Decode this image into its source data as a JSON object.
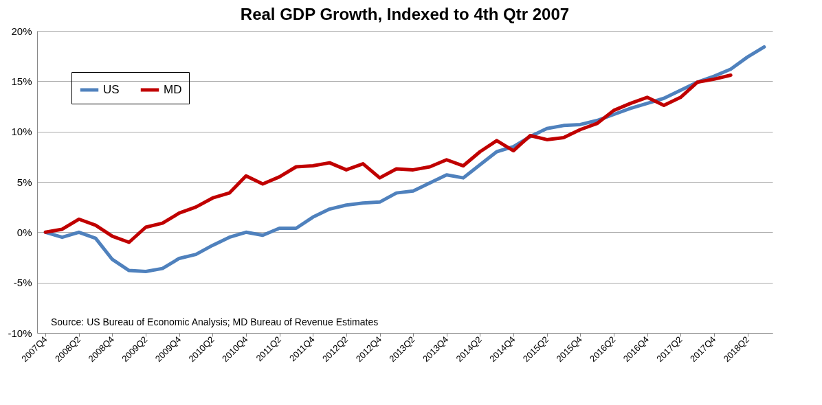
{
  "chart_data": {
    "type": "line",
    "title": "Real GDP Growth, Indexed to 4th Qtr 2007",
    "categories": [
      "2007Q4",
      null,
      "2008Q2",
      null,
      "2008Q4",
      null,
      "2009Q2",
      null,
      "2009Q4",
      null,
      "2010Q2",
      null,
      "2010Q4",
      null,
      "2011Q2",
      null,
      "2011Q4",
      null,
      "2012Q2",
      null,
      "2012Q4",
      null,
      "2013Q2",
      null,
      "2013Q4",
      null,
      "2014Q2",
      null,
      "2014Q4",
      null,
      "2015Q2",
      null,
      "2015Q4",
      null,
      "2016Q2",
      null,
      "2016Q4",
      null,
      "2017Q2",
      null,
      "2017Q4",
      null,
      "2018Q2",
      null
    ],
    "series": [
      {
        "name": "US",
        "color": "#4f81bd",
        "values": [
          0,
          -0.5,
          0,
          -0.6,
          -2.7,
          -3.8,
          -3.9,
          -3.6,
          -2.6,
          -2.2,
          -1.3,
          -0.5,
          0,
          -0.3,
          0.4,
          0.4,
          1.5,
          2.3,
          2.7,
          2.9,
          3.0,
          3.9,
          4.1,
          4.9,
          5.7,
          5.4,
          6.7,
          8.0,
          8.5,
          9.5,
          10.3,
          10.6,
          10.7,
          11.1,
          11.7,
          12.3,
          12.8,
          13.3,
          14.1,
          14.9,
          15.5,
          16.2,
          17.4,
          18.4
        ]
      },
      {
        "name": "MD",
        "color": "#c00000",
        "values": [
          0,
          0.3,
          1.3,
          0.7,
          -0.4,
          -1.0,
          0.5,
          0.9,
          1.9,
          2.5,
          3.4,
          3.9,
          5.6,
          4.8,
          5.5,
          6.5,
          6.6,
          6.9,
          6.2,
          6.8,
          5.4,
          6.3,
          6.2,
          6.5,
          7.2,
          6.6,
          8.0,
          9.1,
          8.1,
          9.6,
          9.2,
          9.4,
          10.2,
          10.8,
          12.1,
          12.8,
          13.4,
          12.6,
          13.4,
          14.9,
          15.2,
          15.6,
          null,
          null
        ]
      }
    ],
    "ylim": [
      -10,
      20
    ],
    "yticks": [
      {
        "value": -10,
        "label": "-10%"
      },
      {
        "value": -5,
        "label": "-5%"
      },
      {
        "value": 0,
        "label": "0%"
      },
      {
        "value": 5,
        "label": "5%"
      },
      {
        "value": 10,
        "label": "10%"
      },
      {
        "value": 15,
        "label": "15%"
      },
      {
        "value": 20,
        "label": "20%"
      }
    ],
    "grid": "y",
    "legend": "top left",
    "line_style": "solid",
    "marker": "none",
    "annotations": [
      "Source: US Bureau of Economic Analysis; MD Bureau of Revenue Estimates"
    ]
  }
}
